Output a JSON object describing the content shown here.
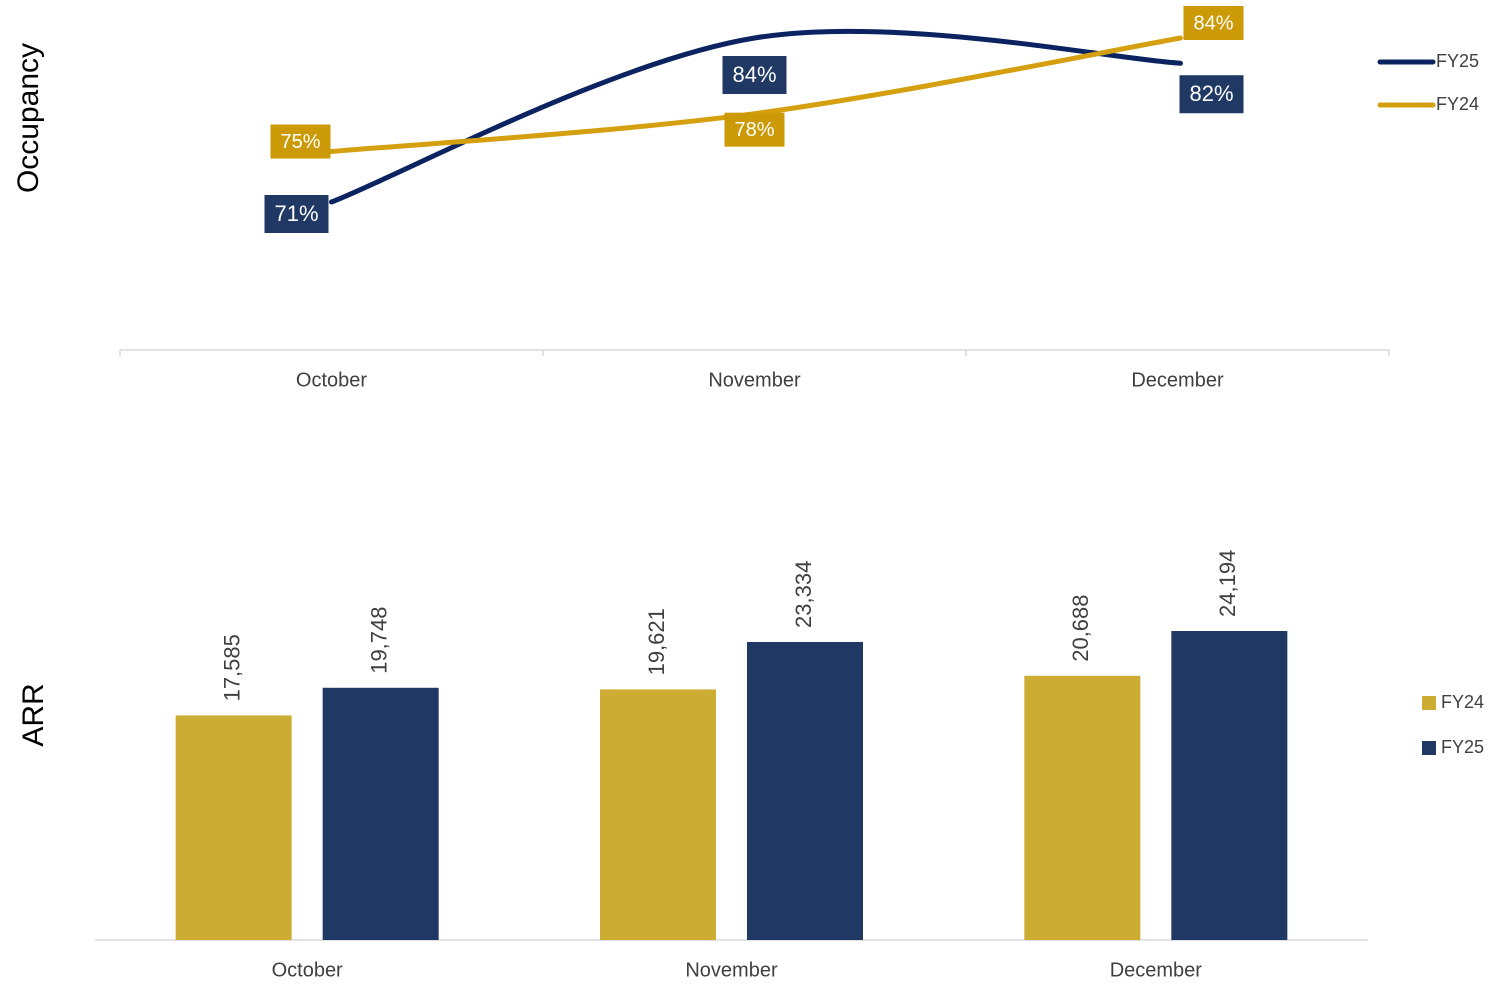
{
  "chart_data": [
    {
      "type": "line",
      "y_label": "Occupancy",
      "categories": [
        "October",
        "November",
        "December"
      ],
      "series": [
        {
          "name": "FY25",
          "color": "#0b2461",
          "label_color": "#1f3864",
          "values": [
            71,
            84,
            82
          ],
          "value_labels": [
            "71%",
            "84%",
            "82%"
          ]
        },
        {
          "name": "FY24",
          "color": "#d4a00f",
          "label_color": "#cc9a06",
          "values": [
            75,
            78,
            84
          ],
          "value_labels": [
            "75%",
            "78%",
            "84%"
          ]
        }
      ],
      "smooth": true,
      "legend": "right"
    },
    {
      "type": "bar",
      "y_label": "ARR",
      "categories": [
        "October",
        "November",
        "December"
      ],
      "series": [
        {
          "name": "FY24",
          "color": "#cdac34",
          "values": [
            17585,
            19621,
            20688
          ],
          "value_labels": [
            "17,585",
            "19,621",
            "20,688"
          ]
        },
        {
          "name": "FY25",
          "color": "#203864",
          "values": [
            19748,
            23334,
            24194
          ],
          "value_labels": [
            "19,748",
            "23,334",
            "24,194"
          ]
        }
      ],
      "legend": "right"
    }
  ]
}
